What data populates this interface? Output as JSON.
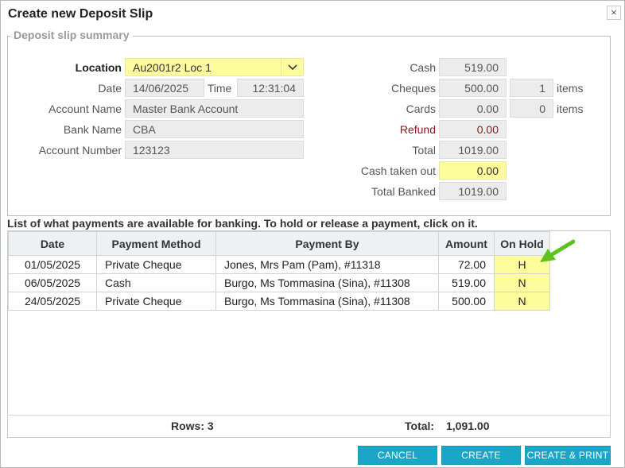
{
  "dialog": {
    "title": "Create new Deposit Slip",
    "close_glyph": "×"
  },
  "summary": {
    "legend": "Deposit slip summary",
    "location_label": "Location",
    "location_value": "Au2001r2 Loc 1",
    "date_label": "Date",
    "date_value": "14/06/2025",
    "time_label": "Time",
    "time_value": "12:31:04",
    "account_name_label": "Account Name",
    "account_name_value": "Master Bank Account",
    "bank_name_label": "Bank Name",
    "bank_name_value": "CBA",
    "account_number_label": "Account Number",
    "account_number_value": "123123",
    "cash_label": "Cash",
    "cash_value": "519.00",
    "cheques_label": "Cheques",
    "cheques_value": "500.00",
    "cheques_items": "1",
    "cards_label": "Cards",
    "cards_value": "0.00",
    "cards_items": "0",
    "items_label": "items",
    "refund_label": "Refund",
    "refund_value": "0.00",
    "total_label": "Total",
    "total_value": "1019.00",
    "cash_taken_label": "Cash taken out",
    "cash_taken_value": "0.00",
    "total_banked_label": "Total Banked",
    "total_banked_value": "1019.00"
  },
  "info_text": "List of what payments are available for banking. To hold or release a payment, click on it.",
  "table": {
    "columns": [
      "Date",
      "Payment Method",
      "Payment By",
      "Amount",
      "On Hold"
    ],
    "rows": [
      {
        "date": "01/05/2025",
        "method": "Private Cheque",
        "by": "Jones, Mrs Pam (Pam), #11318",
        "amount": "72.00",
        "hold": "H"
      },
      {
        "date": "06/05/2025",
        "method": "Cash",
        "by": "Burgo, Ms Tommasina (Sina), #11308",
        "amount": "519.00",
        "hold": "N"
      },
      {
        "date": "24/05/2025",
        "method": "Private Cheque",
        "by": "Burgo, Ms Tommasina (Sina), #11308",
        "amount": "500.00",
        "hold": "N"
      }
    ],
    "rows_label": "Rows: 3",
    "total_label": "Total:",
    "total_value": "1,091.00"
  },
  "buttons": {
    "cancel": "CANCEL",
    "create": "CREATE",
    "create_print": "CREATE & PRINT"
  },
  "colors": {
    "accent": "#1aa6c8",
    "highlight": "#fdfd9e",
    "arrow": "#5cc31c",
    "refund": "#8b1a1a"
  },
  "icons": {
    "close": "close-icon",
    "dropdown": "chevron-down-icon",
    "pointer": "green-arrow-icon"
  }
}
